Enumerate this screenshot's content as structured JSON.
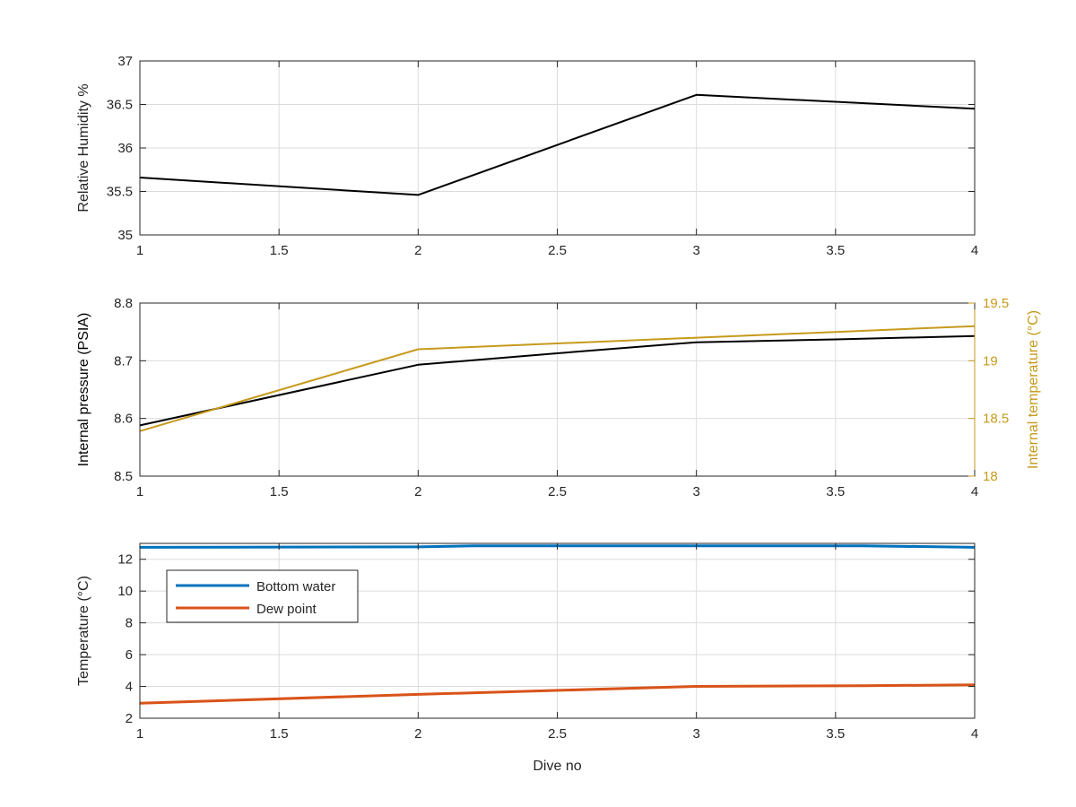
{
  "chart_data": [
    {
      "type": "line",
      "xlabel": "",
      "ylabel": "Relative Humidity %",
      "xlim": [
        1,
        4
      ],
      "ylim": [
        35,
        37
      ],
      "xticks": [
        "1",
        "1.5",
        "2",
        "2.5",
        "3",
        "3.5",
        "4"
      ],
      "yticks": [
        "35",
        "35.5",
        "36",
        "36.5",
        "37"
      ],
      "grid": true,
      "series": [
        {
          "color": "#000000",
          "x": [
            1,
            2,
            3,
            4
          ],
          "y": [
            35.66,
            35.46,
            36.61,
            36.45
          ]
        }
      ]
    },
    {
      "type": "line",
      "xlabel": "",
      "ylabel": "Internal pressure (PSIA)",
      "ylabel_right": "Internal temperature (°C)",
      "xlim": [
        1,
        4
      ],
      "ylim": [
        8.5,
        8.8
      ],
      "ylim_right": [
        18,
        19.5
      ],
      "xticks": [
        "1",
        "1.5",
        "2",
        "2.5",
        "3",
        "3.5",
        "4"
      ],
      "yticks": [
        "8.5",
        "8.6",
        "8.7",
        "8.8"
      ],
      "yticks_right": [
        "18",
        "18.5",
        "19",
        "19.5"
      ],
      "right_axis_color": "#c69a1c",
      "grid": true,
      "series": [
        {
          "color": "#000000",
          "axis": "left",
          "x": [
            1,
            2,
            2.5,
            3,
            3.5,
            4
          ],
          "y": [
            8.588,
            8.693,
            8.713,
            8.732,
            8.737,
            8.743
          ]
        },
        {
          "color": "#c69a1c",
          "axis": "right",
          "x": [
            1,
            2,
            2.5,
            3,
            3.5,
            4
          ],
          "y": [
            18.39,
            19.1,
            19.15,
            19.2,
            19.25,
            19.3
          ]
        }
      ]
    },
    {
      "type": "line",
      "xlabel": "Dive no",
      "ylabel": "Temperature (°C)",
      "xlim": [
        1,
        4
      ],
      "ylim": [
        2,
        13
      ],
      "xticks": [
        "1",
        "1.5",
        "2",
        "2.5",
        "3",
        "3.5",
        "4"
      ],
      "yticks": [
        "2",
        "4",
        "6",
        "8",
        "10",
        "12"
      ],
      "grid": true,
      "legend": "top-left",
      "series": [
        {
          "name": "Bottom water",
          "color": "#0072bd",
          "x": [
            1,
            2,
            2.2,
            3,
            3.6,
            4
          ],
          "y": [
            12.75,
            12.78,
            12.85,
            12.84,
            12.85,
            12.75
          ]
        },
        {
          "name": "Dew point",
          "color": "#d95319",
          "x": [
            1,
            2,
            3,
            3.6,
            4
          ],
          "y": [
            2.95,
            3.5,
            4.0,
            4.05,
            4.1
          ]
        }
      ]
    }
  ]
}
